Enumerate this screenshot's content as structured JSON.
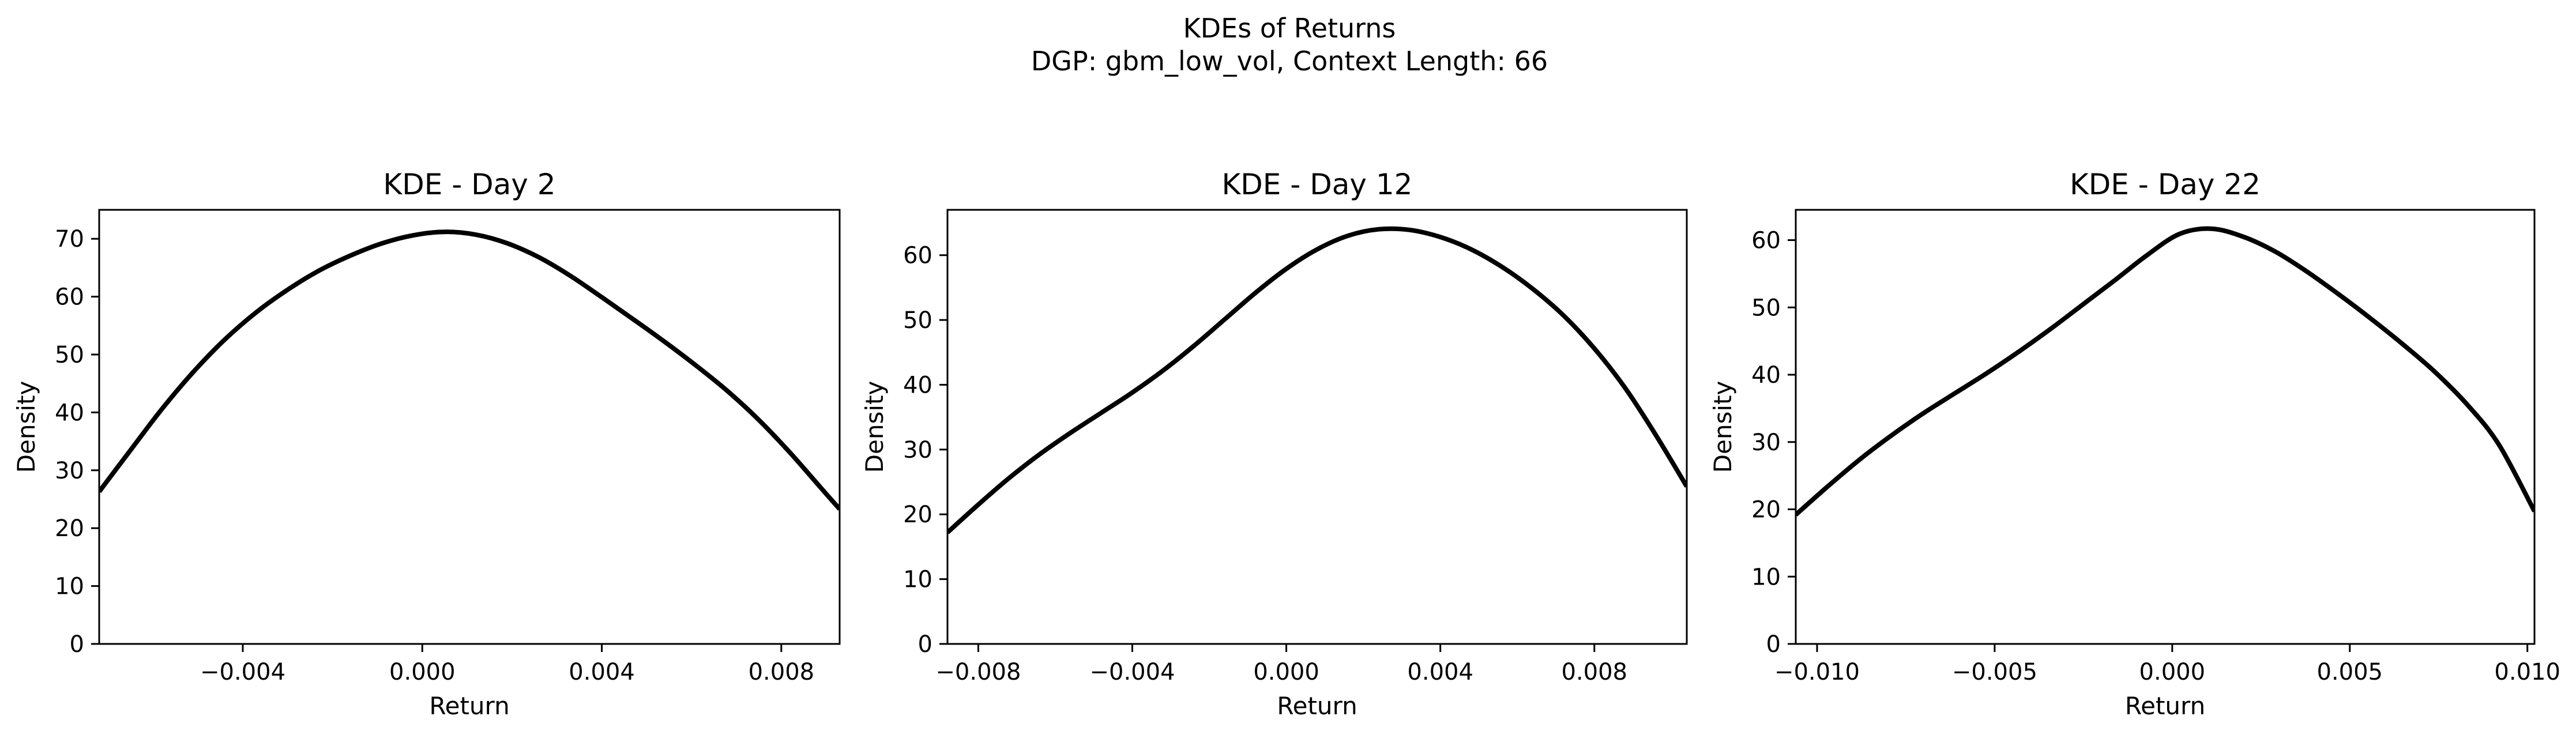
{
  "figure": {
    "title_line1": "KDEs of Returns",
    "title_line2": "DGP: gbm_low_vol, Context Length: 66"
  },
  "chart_data": [
    {
      "type": "line",
      "title": "KDE - Day 2",
      "xlabel": "Return",
      "ylabel": "Density",
      "xlim": [
        -0.0072,
        0.0093
      ],
      "ylim": [
        0,
        75
      ],
      "xticks": [
        -0.004,
        0.0,
        0.004,
        0.008
      ],
      "xtick_labels": [
        "−0.004",
        "0.000",
        "0.004",
        "0.008"
      ],
      "yticks": [
        0,
        10,
        20,
        30,
        40,
        50,
        60,
        70
      ],
      "ytick_labels": [
        "0",
        "10",
        "20",
        "30",
        "40",
        "50",
        "60",
        "70"
      ],
      "grid": false,
      "legend": "none",
      "line_color": "#000000",
      "series": [
        {
          "x": [
            -0.0072,
            -0.0065,
            -0.0058,
            -0.0051,
            -0.0044,
            -0.0037,
            -0.003,
            -0.0023,
            -0.0016,
            -0.0009,
            -0.0002,
            0.0005,
            0.0012,
            0.0019,
            0.0026,
            0.0033,
            0.004,
            0.0047,
            0.0054,
            0.0061,
            0.0068,
            0.0075,
            0.0082,
            0.0089,
            0.0093
          ],
          "values": [
            26.3,
            33.5,
            40.6,
            47.0,
            52.6,
            57.3,
            61.2,
            64.5,
            67.1,
            69.2,
            70.6,
            71.2,
            70.7,
            69.2,
            66.8,
            63.6,
            59.9,
            56.1,
            52.2,
            48.1,
            43.7,
            38.7,
            33.0,
            26.8,
            23.3
          ]
        }
      ]
    },
    {
      "type": "line",
      "title": "KDE - Day 12",
      "xlabel": "Return",
      "ylabel": "Density",
      "xlim": [
        -0.0088,
        0.0104
      ],
      "ylim": [
        0,
        67
      ],
      "xticks": [
        -0.008,
        -0.004,
        0.0,
        0.004,
        0.008
      ],
      "xtick_labels": [
        "−0.008",
        "−0.004",
        "0.000",
        "0.004",
        "0.008"
      ],
      "yticks": [
        0,
        10,
        20,
        30,
        40,
        50,
        60
      ],
      "ytick_labels": [
        "0",
        "10",
        "20",
        "30",
        "40",
        "50",
        "60"
      ],
      "grid": false,
      "legend": "none",
      "line_color": "#000000",
      "series": [
        {
          "x": [
            -0.0088,
            -0.008,
            -0.0072,
            -0.0064,
            -0.0056,
            -0.0048,
            -0.004,
            -0.0032,
            -0.0024,
            -0.0016,
            -0.0008,
            0.0,
            0.0008,
            0.0016,
            0.0024,
            0.0032,
            0.004,
            0.0048,
            0.0056,
            0.0064,
            0.0072,
            0.008,
            0.0088,
            0.0096,
            0.0104
          ],
          "values": [
            17.2,
            21.5,
            25.6,
            29.3,
            32.6,
            35.7,
            38.8,
            42.2,
            46.0,
            50.1,
            54.2,
            57.9,
            60.9,
            63.0,
            64.0,
            63.9,
            62.8,
            60.9,
            58.2,
            54.8,
            50.7,
            45.6,
            39.5,
            32.2,
            24.3
          ]
        }
      ]
    },
    {
      "type": "line",
      "title": "KDE - Day 22",
      "xlabel": "Return",
      "ylabel": "Density",
      "xlim": [
        -0.0106,
        0.0102
      ],
      "ylim": [
        0,
        64.5
      ],
      "xticks": [
        -0.01,
        -0.005,
        0.0,
        0.005,
        0.01
      ],
      "xtick_labels": [
        "−0.010",
        "−0.005",
        "0.000",
        "0.005",
        "0.010"
      ],
      "yticks": [
        0,
        10,
        20,
        30,
        40,
        50,
        60
      ],
      "ytick_labels": [
        "0",
        "10",
        "20",
        "30",
        "40",
        "50",
        "60"
      ],
      "grid": false,
      "legend": "none",
      "line_color": "#000000",
      "series": [
        {
          "x": [
            -0.0106,
            -0.0097,
            -0.0088,
            -0.0079,
            -0.007,
            -0.0061,
            -0.0052,
            -0.0043,
            -0.0034,
            -0.0025,
            -0.0016,
            -0.0007,
            0.0002,
            0.0011,
            0.002,
            0.0029,
            0.0038,
            0.0047,
            0.0056,
            0.0065,
            0.0074,
            0.0083,
            0.0092,
            0.0102
          ],
          "values": [
            19.2,
            23.4,
            27.4,
            31.0,
            34.3,
            37.3,
            40.3,
            43.5,
            46.9,
            50.5,
            54.1,
            57.8,
            60.9,
            61.7,
            60.5,
            58.3,
            55.3,
            51.9,
            48.3,
            44.5,
            40.4,
            35.6,
            29.6,
            19.7
          ]
        }
      ]
    }
  ]
}
